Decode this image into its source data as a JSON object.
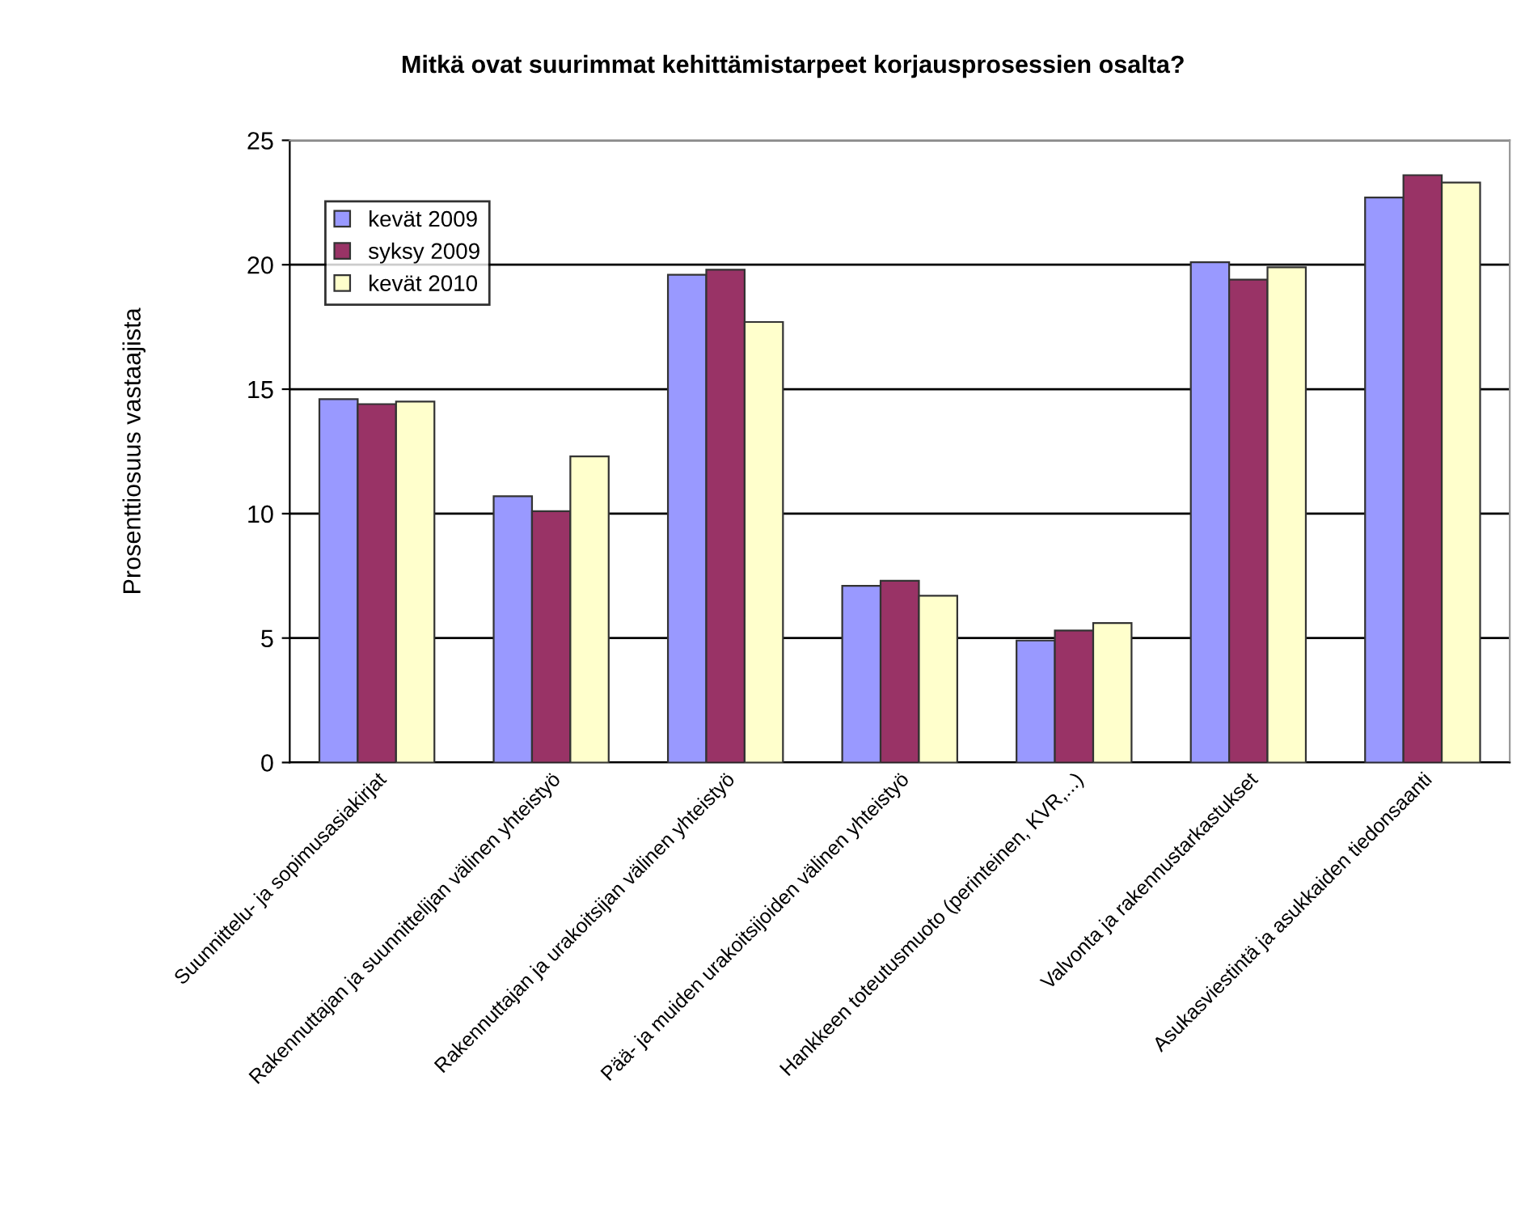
{
  "chart_data": {
    "type": "bar",
    "title": "Mitkä ovat suurimmat kehittämistarpeet korjausprosessien osalta?",
    "ylabel": "Prosenttiosuus vastaajista",
    "categories": [
      "Suunnittelu- ja sopimusasiakirjat",
      "Rakennuttajan ja suunnittelijan välinen yhteistyö",
      "Rakennuttajan ja urakoitsijan välinen yhteistyö",
      "Pää- ja muiden urakoitsijoiden välinen yhteistyö",
      "Hankkeen toteutusmuoto (perinteinen, KVR,...)",
      "Valvonta ja rakennustarkastukset",
      "Asukasviestintä ja asukkaiden tiedonsaanti"
    ],
    "series": [
      {
        "name": "kevät 2009",
        "color": "#9999ff",
        "values": [
          14.6,
          10.7,
          19.6,
          7.1,
          4.9,
          20.1,
          22.7
        ]
      },
      {
        "name": "syksy 2009",
        "color": "#993366",
        "values": [
          14.4,
          10.1,
          19.8,
          7.3,
          5.3,
          19.4,
          23.6
        ]
      },
      {
        "name": "kevät 2010",
        "color": "#ffffcc",
        "values": [
          14.5,
          12.3,
          17.7,
          6.7,
          5.6,
          19.9,
          23.3
        ]
      }
    ],
    "ylim": [
      0,
      25
    ],
    "yticks": [
      0,
      5,
      10,
      15,
      20,
      25
    ],
    "grid": "y",
    "legend": "top left"
  }
}
